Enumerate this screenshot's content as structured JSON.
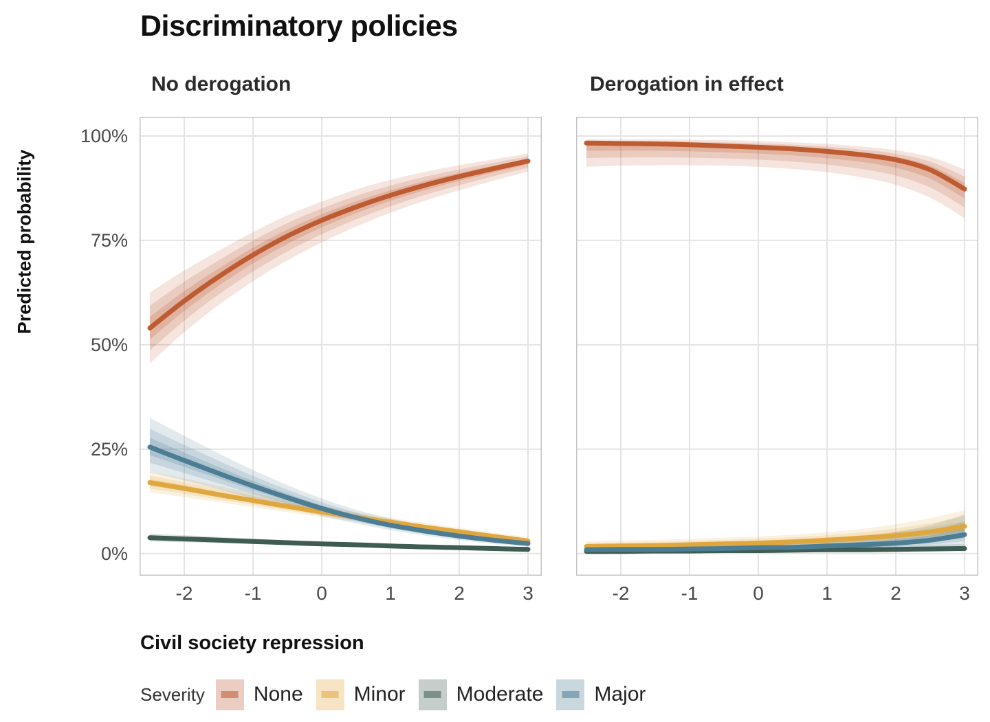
{
  "legend": {
    "title": "Severity",
    "items": [
      {
        "label": "None",
        "color": "#BE5B31"
      },
      {
        "label": "Minor",
        "color": "#E0A73F"
      },
      {
        "label": "Moderate",
        "color": "#3E5C51"
      },
      {
        "label": "Major",
        "color": "#4C7D94"
      }
    ]
  },
  "chart_data": {
    "type": "line",
    "title": "Discriminatory policies",
    "xlabel": "Civil society repression",
    "ylabel": "Predicted probability",
    "grid": true,
    "legend_position": "bottom",
    "x_ticks": [
      -2,
      -1,
      0,
      1,
      2,
      3
    ],
    "y_ticks": [
      {
        "value": 0,
        "label": "0%"
      },
      {
        "value": 25,
        "label": "25%"
      },
      {
        "value": 50,
        "label": "50%"
      },
      {
        "value": 75,
        "label": "75%"
      },
      {
        "value": 100,
        "label": "100%"
      }
    ],
    "x_range": [
      -2.65,
      3.2
    ],
    "y_range": [
      -5.3,
      104.6
    ],
    "x": [
      -2.5,
      -2,
      -1.5,
      -1,
      -0.5,
      0,
      0.5,
      1,
      1.5,
      2,
      2.5,
      3
    ],
    "facets": [
      {
        "label": "No derogation",
        "series": [
          {
            "name": "None",
            "color": "#BE5B31",
            "y": [
              54,
              60.5,
              66.3,
              71.5,
              76,
              79.8,
              83,
              85.8,
              88.2,
              90.3,
              92.2,
              94
            ],
            "ci_low": [
              45.5,
              53,
              59.5,
              65.2,
              70.2,
              74.5,
              78.3,
              81.6,
              84.5,
              87,
              89.3,
              91.5
            ],
            "ci_high": [
              62.5,
              67.8,
              72.5,
              77,
              81,
              84.3,
              87.2,
              89.5,
              91.4,
              93,
              94.4,
              95.8
            ]
          },
          {
            "name": "Minor",
            "color": "#E0A73F",
            "y": [
              17,
              15.6,
              14.1,
              12.7,
              11.3,
              10,
              8.7,
              7.5,
              6.3,
              5.2,
              4.1,
              3
            ],
            "ci_low": [
              14.7,
              13.5,
              12.3,
              11.1,
              9.9,
              8.7,
              7.6,
              6.5,
              5.4,
              4.3,
              3.3,
              2.3
            ],
            "ci_high": [
              19.6,
              18,
              16.2,
              14.5,
              12.9,
              11.4,
              9.9,
              8.6,
              7.3,
              6.2,
              5,
              4
            ]
          },
          {
            "name": "Moderate",
            "color": "#3E5C51",
            "y": [
              3.8,
              3.5,
              3.2,
              2.9,
              2.6,
              2.3,
              2.1,
              1.8,
              1.6,
              1.4,
              1.2,
              1
            ],
            "ci_low": [
              2.9,
              2.7,
              2.5,
              2.3,
              2.1,
              1.9,
              1.7,
              1.5,
              1.3,
              1.1,
              0.9,
              0.7
            ],
            "ci_high": [
              4.8,
              4.4,
              4,
              3.6,
              3.2,
              2.9,
              2.6,
              2.3,
              2,
              1.7,
              1.5,
              1.3
            ]
          },
          {
            "name": "Major",
            "color": "#4C7D94",
            "y": [
              25.5,
              22.3,
              19.2,
              16.2,
              13.4,
              10.8,
              8.6,
              6.8,
              5.4,
              4.2,
              3.2,
              2.4
            ],
            "ci_low": [
              19.5,
              17.5,
              15.4,
              13.2,
              11,
              9,
              7.2,
              5.6,
              4.3,
              3.2,
              2.3,
              1.6
            ],
            "ci_high": [
              32.5,
              28.2,
              24,
              20,
              16.4,
              13.2,
              10.5,
              8.4,
              6.8,
              5.5,
              4.5,
              3.6
            ]
          }
        ]
      },
      {
        "label": "Derogation in effect",
        "series": [
          {
            "name": "None",
            "color": "#BE5B31",
            "y": [
              98.3,
              98.2,
              98.1,
              97.9,
              97.6,
              97.3,
              96.9,
              96.3,
              95.5,
              94.3,
              91.9,
              87.3
            ],
            "ci_low": [
              92.6,
              92.9,
              93,
              93,
              92.9,
              92.6,
              92.1,
              91.3,
              90.1,
              88.3,
              85.2,
              80.3
            ],
            "ci_high": [
              99.3,
              99.2,
              99.2,
              99.1,
              99,
              98.8,
              98.5,
              98.1,
              97.5,
              96.6,
              95,
              92
            ]
          },
          {
            "name": "Minor",
            "color": "#E0A73F",
            "y": [
              1.7,
              1.8,
              1.9,
              2.1,
              2.3,
              2.5,
              2.8,
              3.2,
              3.7,
              4.3,
              5.2,
              6.5
            ],
            "ci_low": [
              0.8,
              0.9,
              1,
              1.1,
              1.2,
              1.4,
              1.6,
              1.8,
              2.1,
              2.5,
              3,
              3.8
            ],
            "ci_high": [
              3,
              3.1,
              3.3,
              3.5,
              3.8,
              4.1,
              4.5,
              5.1,
              5.9,
              7,
              8.5,
              10.4
            ]
          },
          {
            "name": "Moderate",
            "color": "#3E5C51",
            "y": [
              0.5,
              0.5,
              0.6,
              0.6,
              0.7,
              0.7,
              0.8,
              0.9,
              0.9,
              1,
              1.1,
              1.2
            ],
            "ci_low": [
              0.2,
              0.2,
              0.3,
              0.3,
              0.3,
              0.4,
              0.4,
              0.4,
              0.5,
              0.5,
              0.6,
              0.6
            ],
            "ci_high": [
              1.1,
              1.1,
              1.2,
              1.2,
              1.3,
              1.4,
              1.5,
              1.6,
              1.7,
              1.9,
              2.1,
              2.3
            ]
          },
          {
            "name": "Major",
            "color": "#4C7D94",
            "y": [
              0.9,
              1,
              1,
              1.1,
              1.2,
              1.4,
              1.5,
              1.8,
              2.1,
              2.5,
              3.2,
              4.5
            ],
            "ci_low": [
              0.3,
              0.4,
              0.4,
              0.5,
              0.5,
              0.6,
              0.7,
              0.8,
              1,
              1.2,
              1.5,
              2
            ],
            "ci_high": [
              2.2,
              2.3,
              2.4,
              2.5,
              2.7,
              2.9,
              3.2,
              3.6,
              4.2,
              5.2,
              6.8,
              9.4
            ]
          }
        ]
      }
    ],
    "style": {
      "grid_color": "#E4E4E4",
      "panel_border_color": "#C4C4C4",
      "tick_label_color": "#4a4a4a",
      "ribbon_opacities": [
        0.16,
        0.18,
        0.22
      ],
      "ribbon_levels": [
        1,
        0.63,
        0.32
      ]
    }
  }
}
